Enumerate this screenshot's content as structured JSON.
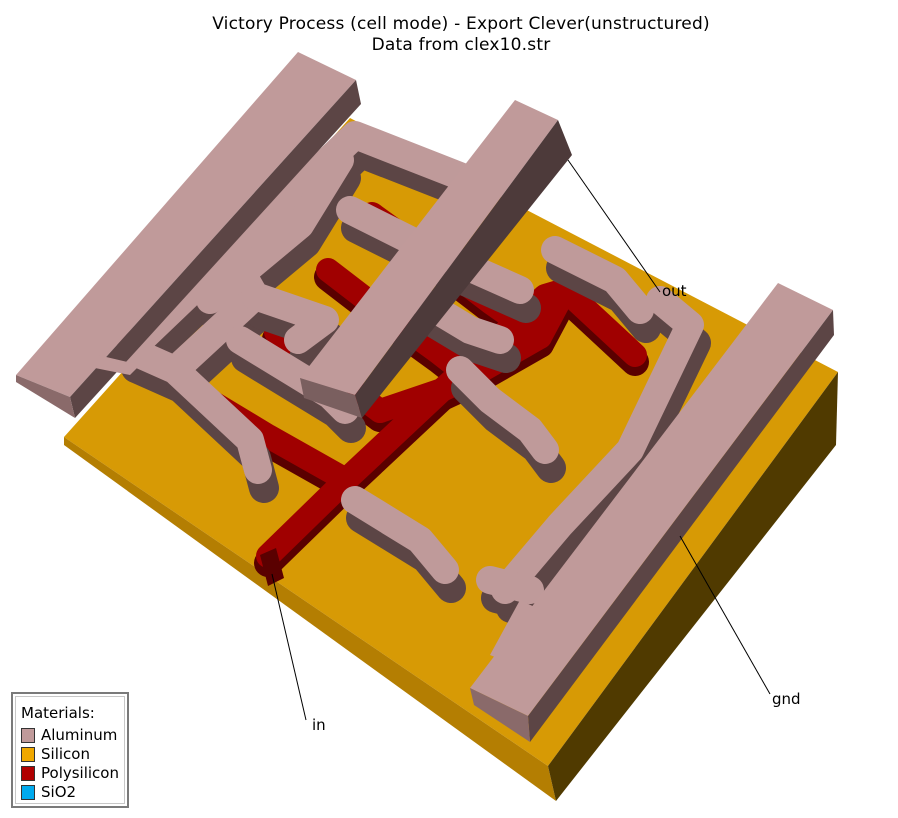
{
  "title": {
    "line1": "Victory Process  (cell mode) - Export Clever(unstructured)",
    "line2": "Data from clex10.str"
  },
  "labels": {
    "out": "out",
    "in": "in",
    "gnd": "gnd"
  },
  "legend": {
    "title": "Materials:",
    "items": [
      {
        "name": "Aluminum",
        "color": "#c09a9a"
      },
      {
        "name": "Silicon",
        "color": "#f0a800"
      },
      {
        "name": "Polysilicon",
        "color": "#b00000"
      },
      {
        "name": "SiO2",
        "color": "#00aaee"
      }
    ]
  }
}
